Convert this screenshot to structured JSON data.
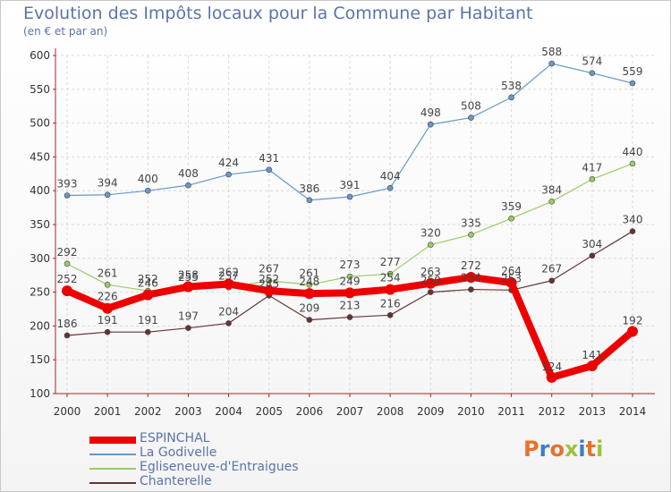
{
  "header": {
    "title": "Evolution des Impôts locaux pour la Commune par Habitant",
    "subtitle": "(en € et par an)"
  },
  "logo": {
    "text": "Proxiti",
    "colors": [
      "#e8722a",
      "#3c7fc1",
      "#e8722a",
      "#9cc23c",
      "#3c7fc1",
      "#e8722a",
      "#9cc23c"
    ]
  },
  "chart_data": {
    "type": "line",
    "x": [
      "2000",
      "2001",
      "2002",
      "2003",
      "2004",
      "2005",
      "2006",
      "2007",
      "2008",
      "2009",
      "2010",
      "2011",
      "2012",
      "2013",
      "2014"
    ],
    "ylim": [
      100,
      600
    ],
    "yticks": [
      100,
      150,
      200,
      250,
      300,
      350,
      400,
      450,
      500,
      550,
      600
    ],
    "grid": true,
    "legend_position": "bottom-left",
    "series": [
      {
        "name": "ESPINCHAL",
        "color": "#ee0000",
        "values": [
          252,
          226,
          246,
          258,
          262,
          252,
          248,
          249,
          254,
          263,
          272,
          264,
          124,
          141,
          192
        ]
      },
      {
        "name": "La Godivelle",
        "color": "#6699cc",
        "values": [
          393,
          394,
          400,
          408,
          424,
          431,
          386,
          391,
          404,
          498,
          508,
          538,
          588,
          574,
          559
        ]
      },
      {
        "name": "Egliseneuve-d'Entraigues",
        "color": "#99cc66",
        "values": [
          292,
          261,
          252,
          255,
          257,
          267,
          261,
          273,
          277,
          320,
          335,
          359,
          384,
          417,
          440
        ]
      },
      {
        "name": "Chanterelle",
        "color": "#663333",
        "values": [
          186,
          191,
          191,
          197,
          204,
          245,
          209,
          213,
          216,
          250,
          254,
          253,
          267,
          304,
          340
        ]
      }
    ]
  }
}
